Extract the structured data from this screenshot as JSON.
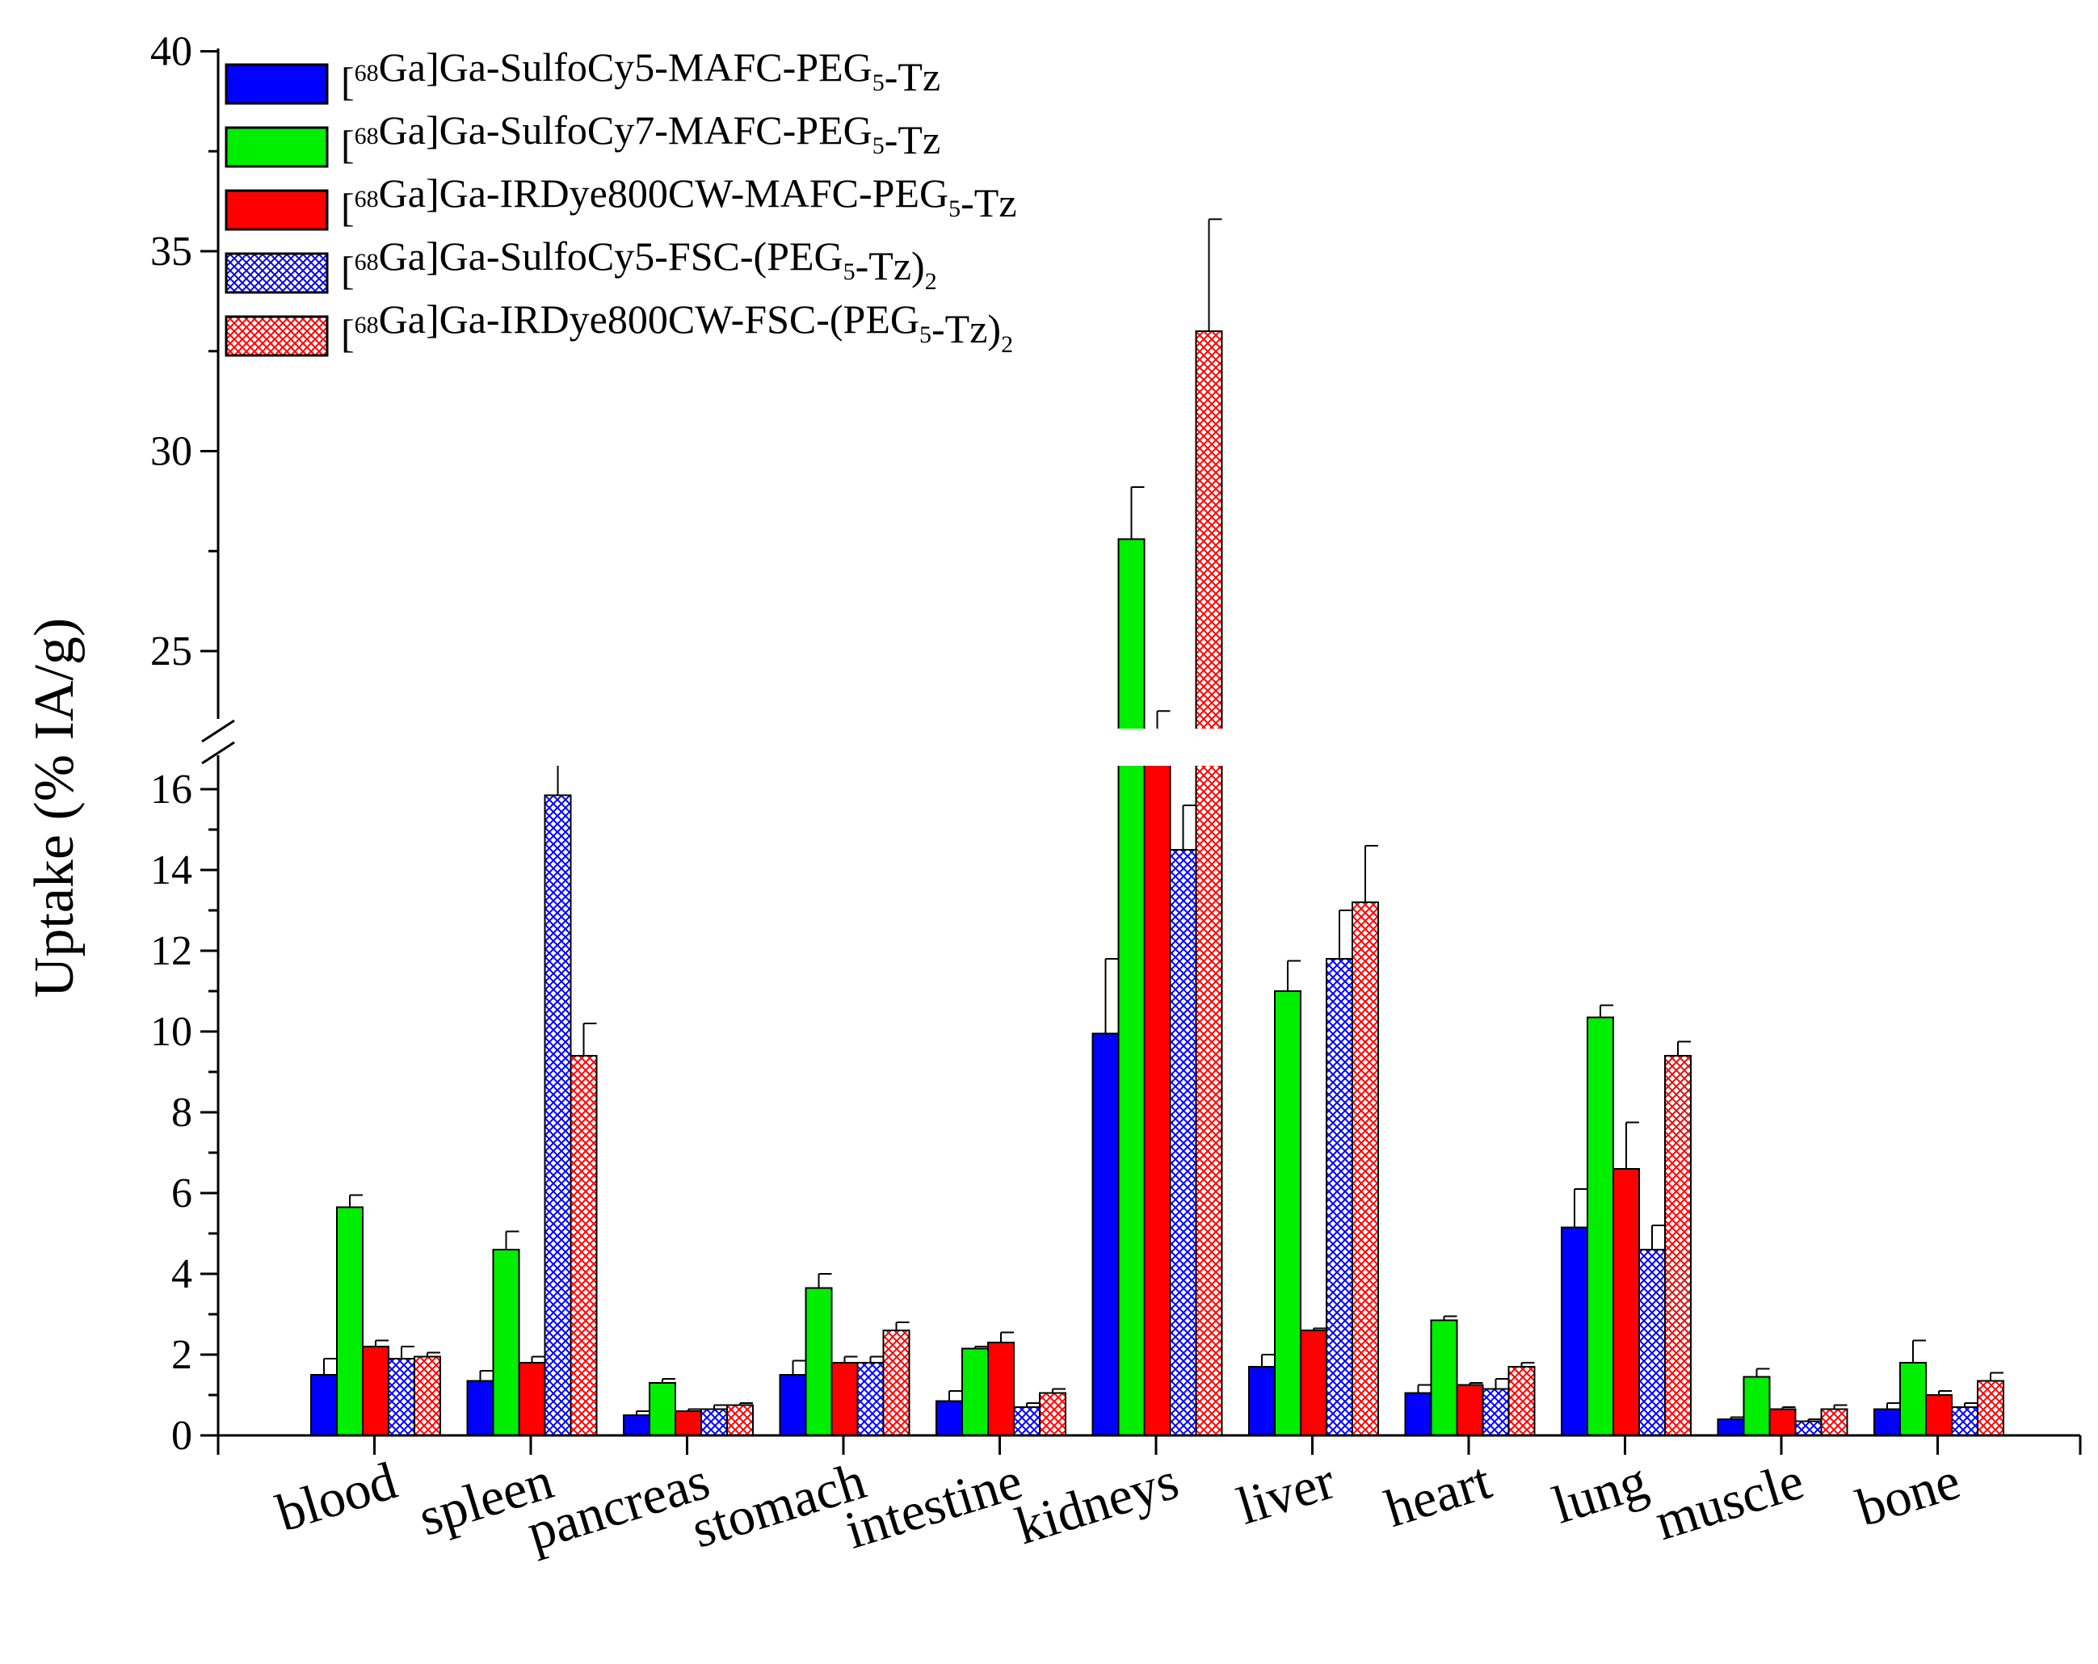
{
  "chart_data": {
    "type": "bar",
    "title": "",
    "xlabel": "",
    "ylabel": "Uptake (% IA/g)",
    "y_axis_break": {
      "lower_range": [
        0,
        17
      ],
      "upper_range": [
        23,
        40
      ]
    },
    "yticks_lower": [
      "0",
      "2",
      "4",
      "6",
      "8",
      "10",
      "12",
      "14",
      "16"
    ],
    "yticks_upper": [
      "25",
      "30",
      "35",
      "40"
    ],
    "categories": [
      "blood",
      "spleen",
      "pancreas",
      "stomach",
      "intestine",
      "kidneys",
      "liver",
      "heart",
      "lung",
      "muscle",
      "bone"
    ],
    "legend_position": "top-left",
    "series": [
      {
        "name": "[68Ga]Ga-SulfoCy5-MAFC-PEG5-Tz",
        "label_parts": [
          [
            "[",
            "n"
          ],
          [
            "68",
            "sup"
          ],
          [
            "Ga]Ga-SulfoCy5-MAFC-PEG",
            "n"
          ],
          [
            "5",
            "sub"
          ],
          [
            "-Tz",
            "n"
          ]
        ],
        "color": "#0000ff",
        "pattern": "solid",
        "values": [
          1.5,
          1.35,
          0.5,
          1.5,
          0.85,
          9.95,
          1.7,
          1.05,
          5.15,
          0.4,
          0.65
        ],
        "errors": [
          0.4,
          0.25,
          0.1,
          0.35,
          0.25,
          1.85,
          0.3,
          0.2,
          0.95,
          0.05,
          0.15
        ]
      },
      {
        "name": "[68Ga]Ga-SulfoCy7-MAFC-PEG5-Tz",
        "label_parts": [
          [
            "[",
            "n"
          ],
          [
            "68",
            "sup"
          ],
          [
            "Ga]Ga-SulfoCy7-MAFC-PEG",
            "n"
          ],
          [
            "5",
            "sub"
          ],
          [
            "-Tz",
            "n"
          ]
        ],
        "color": "#00ee00",
        "pattern": "solid",
        "values": [
          5.65,
          4.6,
          1.3,
          3.65,
          2.15,
          27.8,
          11.0,
          2.85,
          10.35,
          1.45,
          1.8
        ],
        "errors": [
          0.3,
          0.45,
          0.1,
          0.35,
          0.05,
          1.3,
          0.75,
          0.1,
          0.3,
          0.2,
          0.55
        ]
      },
      {
        "name": "[68Ga]Ga-IRDye800CW-MAFC-PEG5-Tz",
        "label_parts": [
          [
            "[",
            "n"
          ],
          [
            "68",
            "sup"
          ],
          [
            "Ga]Ga-IRDye800CW-MAFC-PEG",
            "n"
          ],
          [
            "5",
            "sub"
          ],
          [
            "-Tz",
            "n"
          ]
        ],
        "color": "#ff0000",
        "pattern": "solid",
        "values": [
          2.2,
          1.8,
          0.6,
          1.8,
          2.3,
          22.9,
          2.6,
          1.25,
          6.6,
          0.65,
          1.0
        ],
        "errors": [
          0.15,
          0.15,
          0.05,
          0.15,
          0.25,
          0.6,
          0.05,
          0.05,
          1.15,
          0.05,
          0.1
        ]
      },
      {
        "name": "[68Ga]Ga-SulfoCy5-FSC-(PEG5-Tz)2",
        "label_parts": [
          [
            "[",
            "n"
          ],
          [
            "68",
            "sup"
          ],
          [
            "Ga]Ga-SulfoCy5-FSC-(PEG",
            "n"
          ],
          [
            "5",
            "sub"
          ],
          [
            "-Tz)",
            "n"
          ],
          [
            "2",
            "sub"
          ]
        ],
        "color": "#0000ff",
        "pattern": "crosshatch",
        "values": [
          1.9,
          15.85,
          0.65,
          1.8,
          0.7,
          14.5,
          11.8,
          1.15,
          4.6,
          0.35,
          0.7
        ],
        "errors": [
          0.3,
          0.95,
          0.1,
          0.15,
          0.1,
          1.1,
          1.2,
          0.25,
          0.6,
          0.05,
          0.1
        ]
      },
      {
        "name": "[68Ga]Ga-IRDye800CW-FSC-(PEG5-Tz)2",
        "label_parts": [
          [
            "[",
            "n"
          ],
          [
            "68",
            "sup"
          ],
          [
            "Ga]Ga-IRDye800CW-FSC-(PEG",
            "n"
          ],
          [
            "5",
            "sub"
          ],
          [
            "-Tz)",
            "n"
          ],
          [
            "2",
            "sub"
          ]
        ],
        "color": "#ff0000",
        "pattern": "crosshatch",
        "values": [
          1.95,
          9.4,
          0.75,
          2.6,
          1.05,
          33.0,
          13.2,
          1.7,
          9.4,
          0.65,
          1.35
        ],
        "errors": [
          0.1,
          0.8,
          0.05,
          0.2,
          0.1,
          2.8,
          1.4,
          0.1,
          0.35,
          0.1,
          0.2
        ]
      }
    ]
  }
}
